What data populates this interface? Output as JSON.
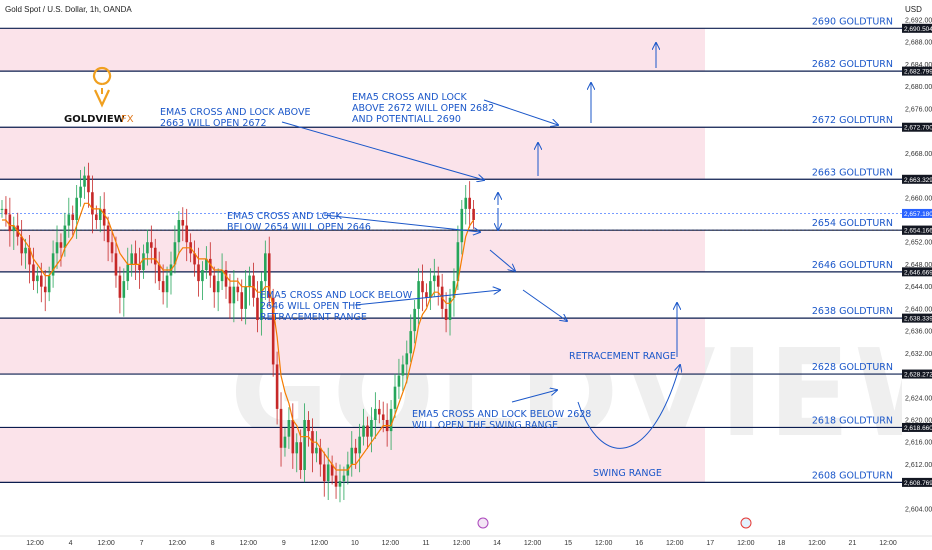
{
  "header": {
    "symbol": "Gold Spot / U.S. Dollar, 1h, OANDA",
    "currency": "USD"
  },
  "logo": {
    "name": "GOLDVIEW",
    "suffix": "FX"
  },
  "watermark": "GOLDVIEW FX",
  "colors": {
    "zone_fill": "#fbe3ea",
    "level_line": "#0b1d4f",
    "annotation": "#1b57c9",
    "bull": "#26a65b",
    "bear": "#c62828",
    "ema": "#f57c00",
    "price_tag": "#2962ff"
  },
  "chart_data": {
    "type": "line",
    "title": "Gold Spot / U.S. Dollar, 1h, OANDA",
    "ylim": [
      2602,
      2692
    ],
    "y_ticks": [
      "2,692.000",
      "2,690.504",
      "2,688.000",
      "2,684.000",
      "2,682.799",
      "2,680.000",
      "2,676.000",
      "2,672.700",
      "2,668.000",
      "2,663.329",
      "2,660.000",
      "2,657.180",
      "2,654.166",
      "2,652.000",
      "2,648.000",
      "2,646.669",
      "2,644.000",
      "2,640.000",
      "2,638.339",
      "2,636.000",
      "2,632.000",
      "2,628.272",
      "2,624.000",
      "2,620.000",
      "2,618.660",
      "2,616.000",
      "2,612.000",
      "2,608.769",
      "2,604.000"
    ],
    "x_ticks": [
      "12:00",
      "4",
      "12:00",
      "7",
      "12:00",
      "8",
      "12:00",
      "9",
      "12:00",
      "10",
      "12:00",
      "11",
      "12:00",
      "14",
      "12:00",
      "15",
      "12:00",
      "16",
      "12:00",
      "17",
      "12:00",
      "18",
      "12:00",
      "21",
      "12:00"
    ],
    "levels": [
      {
        "value": 2690.504,
        "label": "2690 GOLDTURN"
      },
      {
        "value": 2682.799,
        "label": "2682 GOLDTURN"
      },
      {
        "value": 2672.7,
        "label": "2672 GOLDTURN"
      },
      {
        "value": 2663.329,
        "label": "2663 GOLDTURN"
      },
      {
        "value": 2654.166,
        "label": "2654 GOLDTURN"
      },
      {
        "value": 2646.669,
        "label": "2646 GOLDTURN"
      },
      {
        "value": 2638.339,
        "label": "2638 GOLDTURN"
      },
      {
        "value": 2628.272,
        "label": "2628 GOLDTURN"
      },
      {
        "value": 2618.66,
        "label": "2618 GOLDTURN"
      },
      {
        "value": 2608.769,
        "label": "2608 GOLDTURN"
      }
    ],
    "zones": [
      [
        2682.799,
        2690.504
      ],
      [
        2663.329,
        2672.7
      ],
      [
        2646.669,
        2654.166
      ],
      [
        2628.272,
        2638.339
      ],
      [
        2608.769,
        2618.66
      ]
    ],
    "highlighted_tags": [
      {
        "value": 2657.18,
        "label": "2,657.180",
        "color": "#2962ff"
      },
      {
        "value": 2654.166,
        "label": "2,654.166",
        "color": "#131722"
      }
    ],
    "series": [
      {
        "values": [
          2658,
          2657,
          2654,
          2655,
          2653,
          2650,
          2651,
          2648,
          2645,
          2646,
          2644,
          2643,
          2646,
          2650,
          2652,
          2651,
          2655,
          2657,
          2656,
          2660,
          2662,
          2664,
          2661,
          2657,
          2656,
          2658,
          2655,
          2652,
          2650,
          2646,
          2642,
          2645,
          2648,
          2650,
          2648,
          2647,
          2650,
          2652,
          2651,
          2648,
          2645,
          2643,
          2646,
          2648,
          2652,
          2656,
          2655,
          2652,
          2650,
          2648,
          2645,
          2647,
          2649,
          2646,
          2643,
          2645,
          2647,
          2644,
          2641,
          2644,
          2643,
          2640,
          2644,
          2646,
          2642,
          2638,
          2645,
          2650,
          2642,
          2630,
          2622,
          2615,
          2617,
          2620,
          2614,
          2616,
          2611,
          2620,
          2618,
          2614,
          2615,
          2612,
          2609,
          2612,
          2610,
          2608,
          2609,
          2610,
          2612,
          2615,
          2614,
          2617,
          2619,
          2617,
          2620,
          2622,
          2621,
          2620,
          2618,
          2622,
          2626,
          2628,
          2630,
          2632,
          2636,
          2640,
          2645,
          2643,
          2642,
          2645,
          2646,
          2644,
          2640,
          2638,
          2642,
          2645,
          2652,
          2658,
          2660,
          2658,
          2656
        ]
      },
      {
        "values": [
          2656,
          2656,
          2655,
          2655,
          2654,
          2653,
          2652,
          2651,
          2649,
          2648,
          2647,
          2646,
          2646,
          2647,
          2648,
          2649,
          2651,
          2652,
          2653,
          2655,
          2657,
          2659,
          2659,
          2658,
          2658,
          2658,
          2657,
          2656,
          2654,
          2652,
          2650,
          2649,
          2648,
          2648,
          2648,
          2648,
          2649,
          2649,
          2649,
          2649,
          2648,
          2647,
          2647,
          2647,
          2648,
          2650,
          2651,
          2651,
          2651,
          2650,
          2649,
          2649,
          2649,
          2648,
          2647,
          2647,
          2647,
          2646,
          2645,
          2645,
          2645,
          2644,
          2644,
          2644,
          2644,
          2643,
          2643,
          2644,
          2644,
          2640,
          2635,
          2628,
          2625,
          2623,
          2620,
          2619,
          2617,
          2617,
          2617,
          2616,
          2616,
          2615,
          2614,
          2613,
          2612,
          2611,
          2611,
          2611,
          2611,
          2612,
          2612,
          2613,
          2614,
          2615,
          2616,
          2617,
          2618,
          2619,
          2619,
          2619,
          2621,
          2623,
          2625,
          2627,
          2630,
          2633,
          2637,
          2639,
          2640,
          2642,
          2643,
          2643,
          2642,
          2641,
          2641,
          2642,
          2645,
          2649,
          2653,
          2655,
          2656
        ]
      }
    ]
  },
  "annotations": [
    {
      "id": "a1",
      "lines": [
        "EMA5 CROSS AND LOCK ABOVE",
        "2663 WILL OPEN 2672"
      ]
    },
    {
      "id": "a2",
      "lines": [
        "EMA5 CROSS AND LOCK",
        "ABOVE 2672 WILL OPEN 2682",
        "AND POTENTIALL 2690"
      ]
    },
    {
      "id": "a3",
      "lines": [
        "EMA5 CROSS AND LOCK",
        "BELOW 2654 WILL OPEN 2646"
      ]
    },
    {
      "id": "a4",
      "lines": [
        "EMA5 CROSS AND LOCK BELOW",
        "2646 WILL OPEN THE",
        "RETRACEMENT RANGE"
      ]
    },
    {
      "id": "a5",
      "lines": [
        "EMA5 CROSS AND LOCK BELOW 2628",
        "WILL OPEN THE SWING RANGE"
      ]
    },
    {
      "id": "a6",
      "lines": [
        "RETRACEMENT RANGE"
      ]
    },
    {
      "id": "a7",
      "lines": [
        "SWING RANGE"
      ]
    }
  ]
}
